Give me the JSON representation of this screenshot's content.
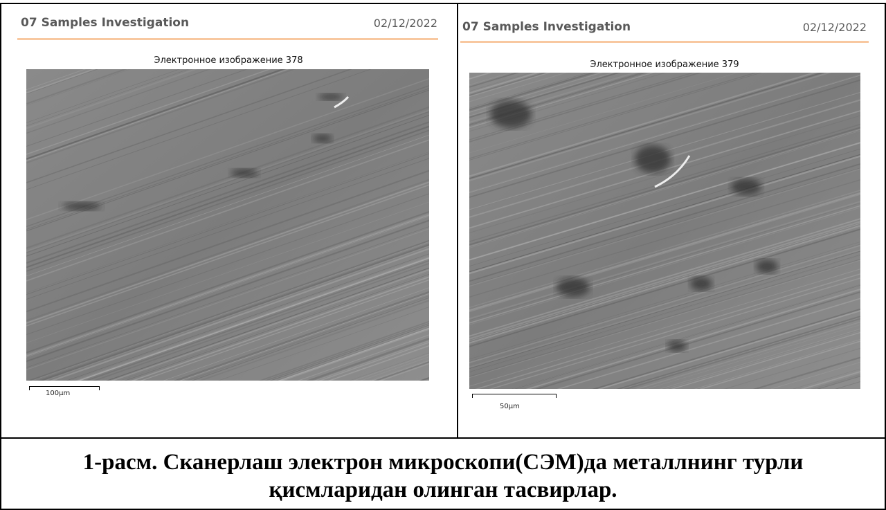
{
  "panels": [
    {
      "header": "07 Samples Investigation",
      "date": "02/12/2022",
      "image_title": "Электронное изображение 378",
      "scale_label": "100µm"
    },
    {
      "header": "07 Samples Investigation",
      "date": "02/12/2022",
      "image_title": "Электронное изображение 379",
      "scale_label": "50µm"
    }
  ],
  "caption": {
    "lines": [
      "1-расм. Сканерлаш электрон микроскопи(СЭМ)да металлнинг турли",
      "қисмларидан олинган тасвирлар."
    ]
  }
}
